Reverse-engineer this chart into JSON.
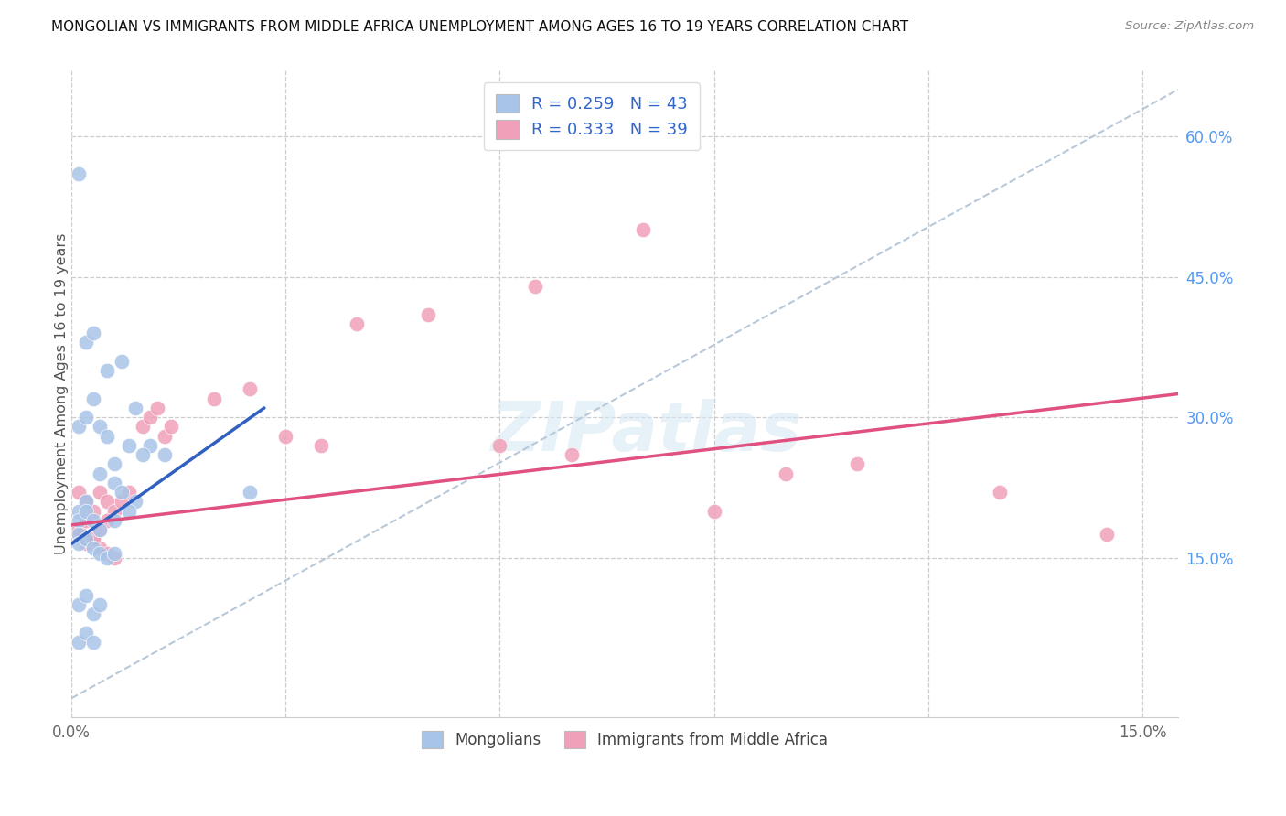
{
  "title": "MONGOLIAN VS IMMIGRANTS FROM MIDDLE AFRICA UNEMPLOYMENT AMONG AGES 16 TO 19 YEARS CORRELATION CHART",
  "source": "Source: ZipAtlas.com",
  "ylabel": "Unemployment Among Ages 16 to 19 years",
  "xlim": [
    0.0,
    0.155
  ],
  "ylim": [
    -0.02,
    0.67
  ],
  "xtick_positions": [
    0.0,
    0.03,
    0.06,
    0.09,
    0.12,
    0.15
  ],
  "xtick_labels": [
    "0.0%",
    "",
    "",
    "",
    "",
    "15.0%"
  ],
  "ytick_positions": [
    0.15,
    0.3,
    0.45,
    0.6
  ],
  "ytick_labels": [
    "15.0%",
    "30.0%",
    "45.0%",
    "60.0%"
  ],
  "mongolian_color": "#a8c4e8",
  "middle_africa_color": "#f0a0b8",
  "mongolian_line_color": "#3060c0",
  "middle_africa_line_color": "#e05080",
  "dashed_line_color": "#b8c8d8",
  "legend_mongolian_label": "Mongolians",
  "legend_africa_label": "Immigrants from Middle Africa",
  "R_mongolian": 0.259,
  "N_mongolian": 43,
  "R_africa": 0.333,
  "N_africa": 39,
  "mongolian_x": [
    0.001,
    0.002,
    0.003,
    0.005,
    0.007,
    0.009,
    0.011,
    0.013,
    0.001,
    0.002,
    0.003,
    0.004,
    0.005,
    0.006,
    0.008,
    0.01,
    0.001,
    0.002,
    0.004,
    0.006,
    0.007,
    0.009,
    0.001,
    0.002,
    0.003,
    0.004,
    0.006,
    0.008,
    0.001,
    0.001,
    0.002,
    0.003,
    0.004,
    0.005,
    0.006,
    0.001,
    0.002,
    0.003,
    0.004,
    0.001,
    0.002,
    0.003,
    0.025
  ],
  "mongolian_y": [
    0.56,
    0.38,
    0.39,
    0.35,
    0.36,
    0.31,
    0.27,
    0.26,
    0.29,
    0.3,
    0.32,
    0.29,
    0.28,
    0.25,
    0.27,
    0.26,
    0.2,
    0.21,
    0.24,
    0.23,
    0.22,
    0.21,
    0.19,
    0.2,
    0.19,
    0.18,
    0.19,
    0.2,
    0.175,
    0.165,
    0.17,
    0.16,
    0.155,
    0.15,
    0.155,
    0.1,
    0.11,
    0.09,
    0.1,
    0.06,
    0.07,
    0.06,
    0.22
  ],
  "africa_x": [
    0.001,
    0.002,
    0.003,
    0.004,
    0.005,
    0.006,
    0.007,
    0.008,
    0.001,
    0.002,
    0.003,
    0.004,
    0.005,
    0.006,
    0.001,
    0.002,
    0.003,
    0.004,
    0.005,
    0.01,
    0.011,
    0.012,
    0.013,
    0.014,
    0.02,
    0.025,
    0.03,
    0.035,
    0.04,
    0.05,
    0.06,
    0.065,
    0.07,
    0.08,
    0.09,
    0.1,
    0.11,
    0.13,
    0.145
  ],
  "africa_y": [
    0.22,
    0.21,
    0.2,
    0.22,
    0.21,
    0.2,
    0.21,
    0.22,
    0.175,
    0.165,
    0.17,
    0.16,
    0.155,
    0.15,
    0.18,
    0.19,
    0.17,
    0.18,
    0.19,
    0.29,
    0.3,
    0.31,
    0.28,
    0.29,
    0.32,
    0.33,
    0.28,
    0.27,
    0.4,
    0.41,
    0.27,
    0.44,
    0.26,
    0.5,
    0.2,
    0.24,
    0.25,
    0.22,
    0.175
  ]
}
